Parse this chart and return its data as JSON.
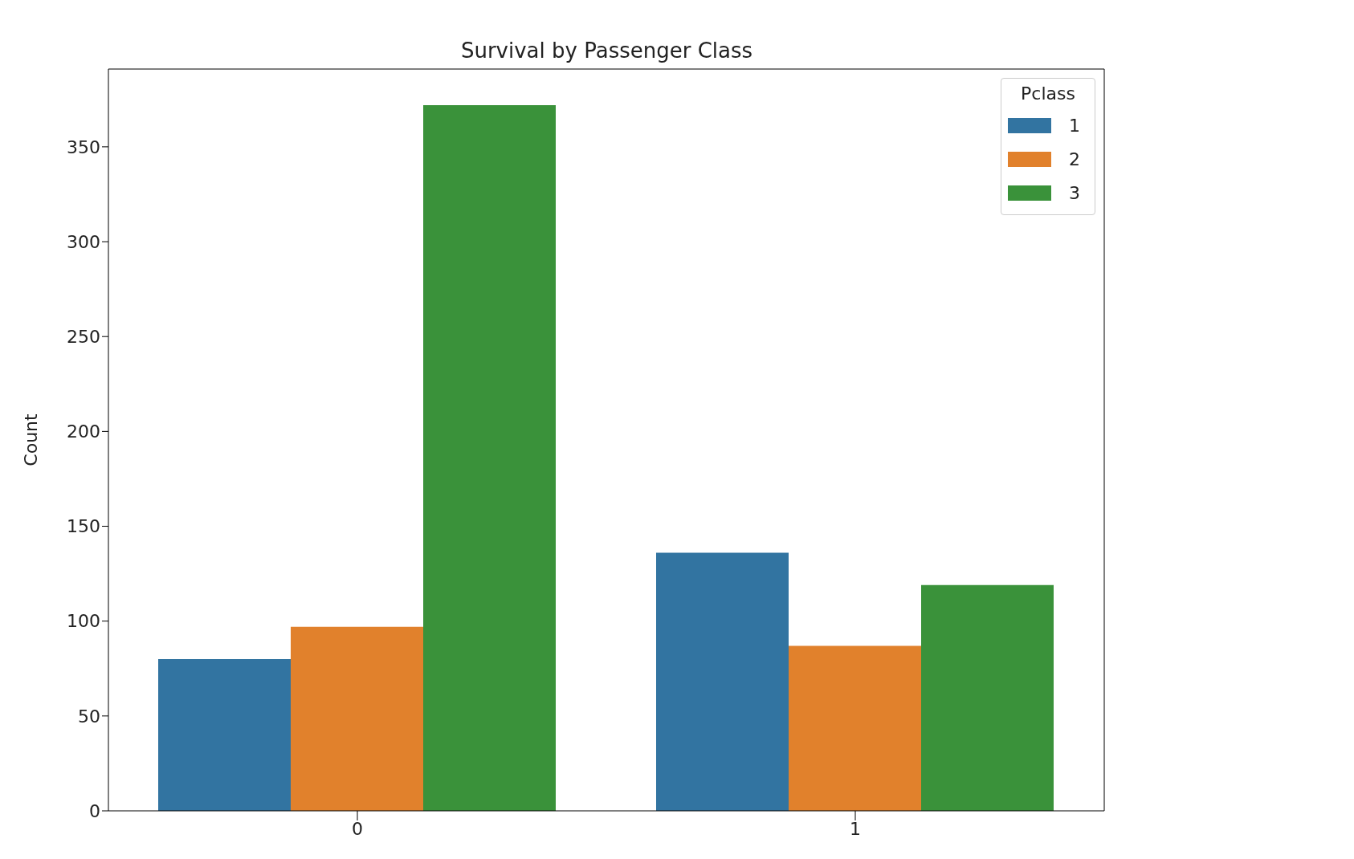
{
  "chart_data": {
    "type": "bar",
    "title": "Survival by Passenger Class",
    "ylabel": "Count",
    "legend_title": "Pclass",
    "categories": [
      "0",
      "1"
    ],
    "series": [
      {
        "name": "1",
        "color": "#3274a1",
        "values": [
          80,
          136
        ]
      },
      {
        "name": "2",
        "color": "#e1812c",
        "values": [
          97,
          87
        ]
      },
      {
        "name": "3",
        "color": "#3a923a",
        "values": [
          372,
          119
        ]
      }
    ],
    "ylim": [
      0,
      391
    ],
    "yticks": [
      0,
      50,
      100,
      150,
      200,
      250,
      300,
      350
    ],
    "legend": "top right"
  }
}
